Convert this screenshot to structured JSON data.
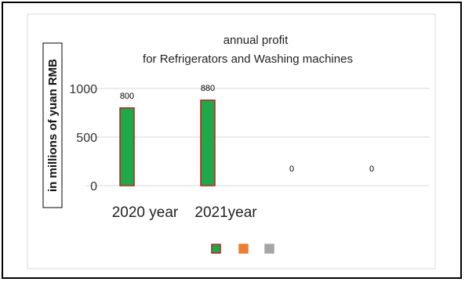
{
  "chart_data": {
    "type": "bar",
    "title": "annual profit",
    "subtitle": "for Refrigerators and Washing machines",
    "ylabel": "in millions of yuan RMB",
    "xlabel": "",
    "ylim": [
      0,
      1000
    ],
    "yticks": [
      0,
      500,
      1000
    ],
    "grid": true,
    "legend_placement": "bottom",
    "categories": [
      "2020 year",
      "2021year",
      "",
      ""
    ],
    "series": [
      {
        "values": [
          800,
          880,
          0,
          0
        ],
        "color": "#1faa4a",
        "border_color": "#b22222"
      }
    ],
    "data_labels": [
      "800",
      "880",
      "0",
      "0"
    ],
    "legend_swatches": [
      {
        "color": "#1faa4a",
        "border_color": "#b22222"
      },
      {
        "color": "#ed7d31",
        "border_color": "#ed7d31"
      },
      {
        "color": "#a5a5a5",
        "border_color": "#a5a5a5"
      }
    ]
  }
}
